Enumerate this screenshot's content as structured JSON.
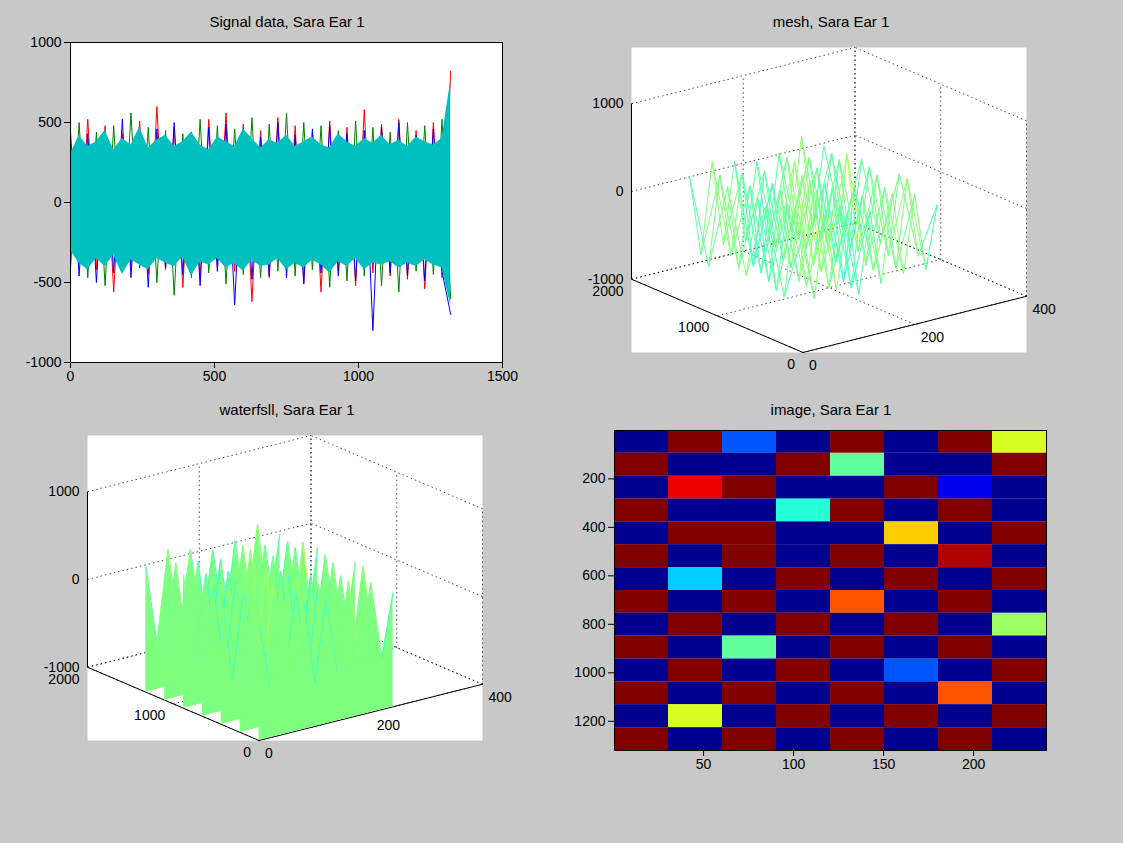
{
  "chart_data": [
    {
      "type": "line",
      "title": "Signal data, Sara Ear 1",
      "x": [
        0,
        30,
        60,
        90,
        120,
        150,
        180,
        210,
        240,
        270,
        300,
        330,
        360,
        390,
        420,
        450,
        480,
        510,
        540,
        570,
        600,
        630,
        660,
        690,
        720,
        750,
        780,
        810,
        840,
        870,
        900,
        930,
        960,
        990,
        1020,
        1050,
        1080,
        1110,
        1140,
        1170,
        1200,
        1230,
        1260,
        1290,
        1320
      ],
      "series": [
        {
          "color": "#ff0000",
          "values": [
            450,
            -380,
            520,
            -420,
            480,
            -560,
            430,
            -400,
            510,
            -450,
            600,
            -420,
            470,
            -530,
            440,
            -480,
            520,
            -400,
            560,
            -430,
            490,
            -620,
            450,
            -470,
            530,
            -410,
            480,
            -500,
            440,
            -560,
            510,
            -430,
            470,
            -520,
            580,
            -440,
            490,
            -460,
            520,
            -480,
            450,
            -540,
            500,
            -470,
            820
          ]
        },
        {
          "color": "#008000",
          "values": [
            -420,
            500,
            -470,
            440,
            -520,
            480,
            -430,
            560,
            -410,
            470,
            -500,
            450,
            -580,
            430,
            -470,
            520,
            -440,
            480,
            -510,
            460,
            -450,
            530,
            -470,
            490,
            -430,
            560,
            -460,
            500,
            -420,
            480,
            -530,
            450,
            -490,
            510,
            -460,
            470,
            -520,
            440,
            -560,
            500,
            -430,
            480,
            -450,
            520,
            -600
          ]
        },
        {
          "color": "#0000ff",
          "values": [
            380,
            -460,
            430,
            -500,
            410,
            -440,
            520,
            -470,
            400,
            -530,
            460,
            -410,
            500,
            -450,
            420,
            -520,
            470,
            -430,
            490,
            -640,
            440,
            -480,
            410,
            -460,
            500,
            -470,
            420,
            -510,
            460,
            -440,
            480,
            -460,
            430,
            -490,
            450,
            -800,
            470,
            -440,
            500,
            -460,
            420,
            -490,
            460,
            -430,
            -700
          ]
        }
      ],
      "band": {
        "color": "#00bfbf",
        "low": [
          -300,
          -380,
          -420,
          -350,
          -400,
          -330,
          -450,
          -360,
          -390,
          -420,
          -350,
          -380,
          -400,
          -340,
          -460,
          -370,
          -390,
          -350,
          -410,
          -380,
          -430,
          -360,
          -400,
          -390,
          -350,
          -420,
          -380,
          -410,
          -360,
          -390,
          -440,
          -370,
          -400,
          -350,
          -420,
          -380,
          -390,
          -370,
          -410,
          -380,
          -400,
          -360,
          -390,
          -410,
          -640
        ],
        "high": [
          300,
          420,
          350,
          380,
          450,
          330,
          400,
          360,
          470,
          340,
          390,
          420,
          350,
          380,
          440,
          360,
          330,
          410,
          380,
          350,
          460,
          400,
          340,
          390,
          370,
          420,
          350,
          380,
          410,
          360,
          340,
          430,
          380,
          350,
          400,
          370,
          420,
          360,
          390,
          350,
          410,
          380,
          360,
          400,
          760
        ]
      },
      "xlim": [
        0,
        1500
      ],
      "xticks": [
        0,
        500,
        1000,
        1500
      ],
      "ylim": [
        -1000,
        1000
      ],
      "yticks": [
        -1000,
        -500,
        0,
        500,
        1000
      ]
    },
    {
      "type": "mesh",
      "title": "mesh, Sara Ear 1",
      "x": [
        0,
        20,
        40,
        60,
        80,
        100,
        120,
        140,
        160,
        180,
        200,
        220,
        240
      ],
      "y": [
        0,
        220,
        440,
        660,
        880,
        1100,
        1320
      ],
      "z": [
        [
          350,
          -420,
          510,
          -380,
          460,
          -500,
          420,
          -440,
          560,
          -390,
          480,
          -410,
          300
        ],
        [
          -460,
          520,
          -400,
          610,
          -480,
          430,
          -550,
          470,
          -420,
          500,
          -460,
          540,
          -380
        ],
        [
          480,
          -510,
          440,
          -470,
          650,
          -420,
          500,
          -600,
          450,
          -480,
          520,
          -430,
          470
        ],
        [
          -400,
          460,
          -530,
          480,
          -440,
          580,
          -470,
          430,
          -510,
          700,
          -450,
          490,
          -420
        ],
        [
          520,
          -440,
          470,
          -560,
          430,
          -490,
          620,
          -410,
          480,
          -460,
          510,
          -530,
          450
        ],
        [
          -480,
          530,
          -420,
          490,
          -610,
          450,
          -460,
          540,
          -430,
          480,
          -500,
          460,
          -440
        ],
        [
          440,
          -470,
          560,
          -420,
          500,
          -450,
          430,
          -520,
          470,
          -440,
          590,
          -480,
          420
        ]
      ],
      "xlim": [
        0,
        400
      ],
      "xticks": [
        0,
        200,
        400
      ],
      "ylim": [
        0,
        2000
      ],
      "yticks": [
        0,
        1000,
        2000
      ],
      "zlim": [
        -1000,
        1000
      ],
      "zticks": [
        -1000,
        0,
        1000
      ]
    },
    {
      "type": "waterfall",
      "title": "waterfsll, Sara Ear 1",
      "x": [
        0,
        20,
        40,
        60,
        80,
        100,
        120,
        140,
        160,
        180,
        200,
        220,
        240
      ],
      "y": [
        0,
        220,
        440,
        660,
        880,
        1100,
        1320
      ],
      "z": [
        [
          350,
          -420,
          510,
          -380,
          460,
          -500,
          420,
          -440,
          560,
          -390,
          480,
          -410,
          300
        ],
        [
          -460,
          520,
          -400,
          610,
          -480,
          430,
          -550,
          470,
          -420,
          500,
          -460,
          540,
          -380
        ],
        [
          480,
          -510,
          440,
          -470,
          650,
          -420,
          500,
          -600,
          450,
          -480,
          520,
          -430,
          470
        ],
        [
          -400,
          460,
          -530,
          480,
          -440,
          580,
          -470,
          430,
          -510,
          700,
          -450,
          490,
          -420
        ],
        [
          520,
          -440,
          470,
          -560,
          430,
          -490,
          620,
          -410,
          480,
          -460,
          510,
          -530,
          450
        ],
        [
          -480,
          530,
          -420,
          490,
          -610,
          450,
          -460,
          540,
          -430,
          480,
          -500,
          460,
          -440
        ],
        [
          440,
          -470,
          560,
          -420,
          500,
          -450,
          430,
          -520,
          470,
          -440,
          590,
          -480,
          420
        ]
      ],
      "xlim": [
        0,
        400
      ],
      "xticks": [
        0,
        200,
        400
      ],
      "ylim": [
        0,
        2000
      ],
      "yticks": [
        0,
        1000,
        2000
      ],
      "zlim": [
        -1000,
        1000
      ],
      "zticks": [
        -1000,
        0,
        1000
      ]
    },
    {
      "type": "image",
      "title": "image, Sara Ear 1",
      "x_edges": [
        0.5,
        30.5,
        60.5,
        90.5,
        120.5,
        150.5,
        180.5,
        210.5,
        240.5
      ],
      "y_edges": [
        0.5,
        94.5,
        189.5,
        283.5,
        377.5,
        471.5,
        566.5,
        660.5,
        754.5,
        848.5,
        943.5,
        1037.5,
        1131.5,
        1226.5,
        1320.5
      ],
      "values": [
        [
          -250,
          320,
          15,
          -180,
          410,
          -90,
          250,
          40
        ],
        [
          300,
          -220,
          -310,
          180,
          30,
          -260,
          -150,
          350
        ],
        [
          -140,
          55,
          270,
          -330,
          -200,
          390,
          10,
          -230
        ],
        [
          210,
          -280,
          -120,
          25,
          340,
          -170,
          290,
          -310
        ],
        [
          -360,
          240,
          160,
          -250,
          -80,
          45,
          -210,
          180
        ],
        [
          120,
          -190,
          380,
          -140,
          260,
          -300,
          60,
          -120
        ],
        [
          -230,
          20,
          -270,
          310,
          -160,
          220,
          -340,
          270
        ],
        [
          330,
          -310,
          180,
          -60,
          50,
          -240,
          150,
          -200
        ],
        [
          -110,
          270,
          -350,
          240,
          -290,
          330,
          -90,
          35
        ],
        [
          260,
          -150,
          30,
          -210,
          190,
          -130,
          310,
          -260
        ],
        [
          -300,
          360,
          -180,
          130,
          -370,
          15,
          -220,
          200
        ],
        [
          170,
          -240,
          290,
          -320,
          240,
          -180,
          50,
          -140
        ],
        [
          -200,
          40,
          -130,
          200,
          -110,
          280,
          -300,
          330
        ],
        [
          310,
          -280,
          230,
          -160,
          360,
          -250,
          140,
          -60
        ]
      ],
      "color_range": [
        1,
        64
      ],
      "xlim": [
        0.5,
        240.5
      ],
      "xticks": [
        50,
        100,
        150,
        200
      ],
      "ylim": [
        1320.5,
        0.5
      ],
      "yticks": [
        200,
        400,
        600,
        800,
        1000,
        1200
      ]
    }
  ]
}
